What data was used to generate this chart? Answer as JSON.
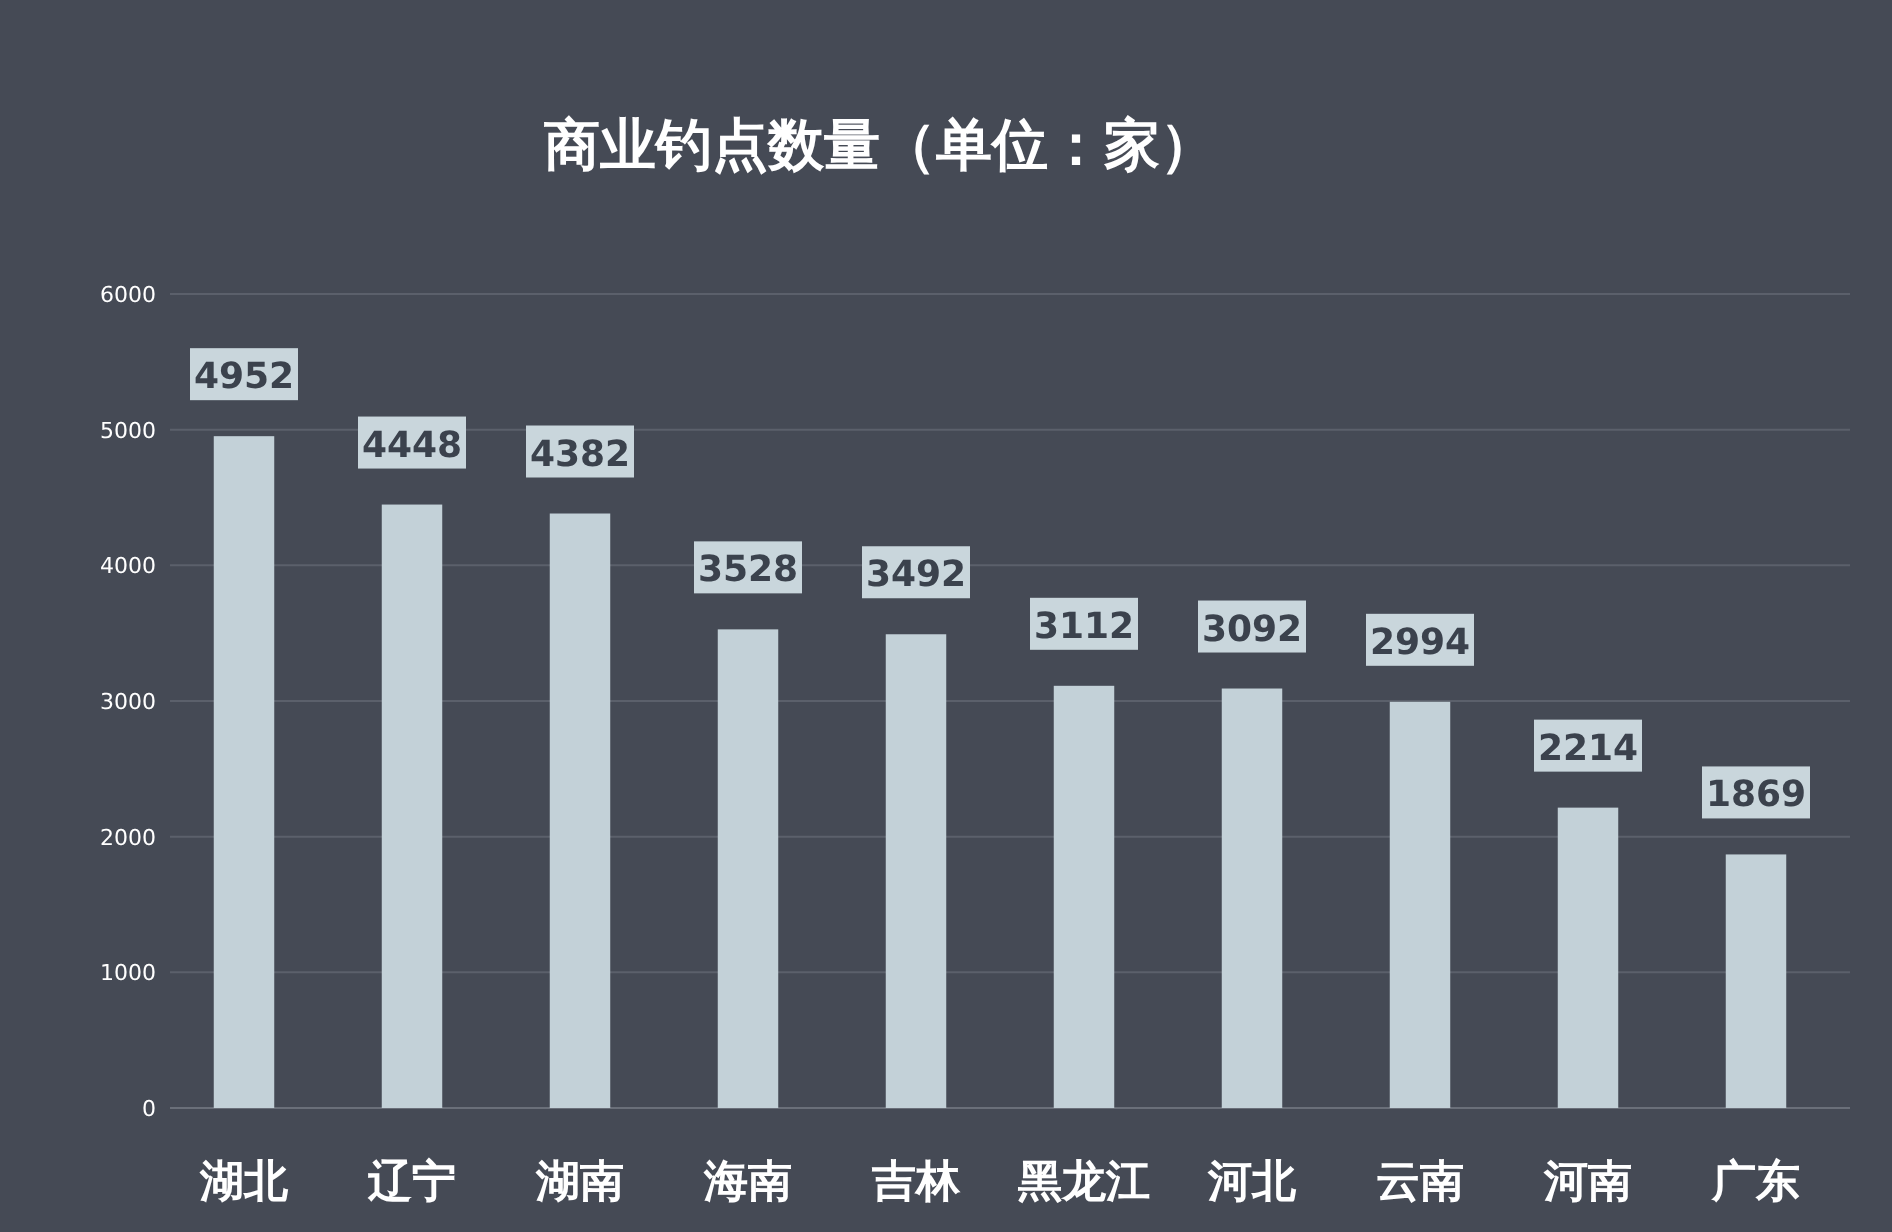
{
  "chart_data": {
    "type": "bar",
    "title": "商业钓点数量（单位：家）",
    "categories": [
      "湖北",
      "辽宁",
      "湖南",
      "海南",
      "吉林",
      "黑龙江",
      "河北",
      "云南",
      "河南",
      "广东"
    ],
    "values": [
      4952,
      4448,
      4382,
      3528,
      3492,
      3112,
      3092,
      2994,
      2214,
      1869
    ],
    "color": "#c3d1d8",
    "ylim": [
      0,
      6000
    ],
    "yticks": [
      0,
      1000,
      2000,
      3000,
      4000,
      5000,
      6000
    ],
    "grid": "y",
    "data_labels": true
  }
}
